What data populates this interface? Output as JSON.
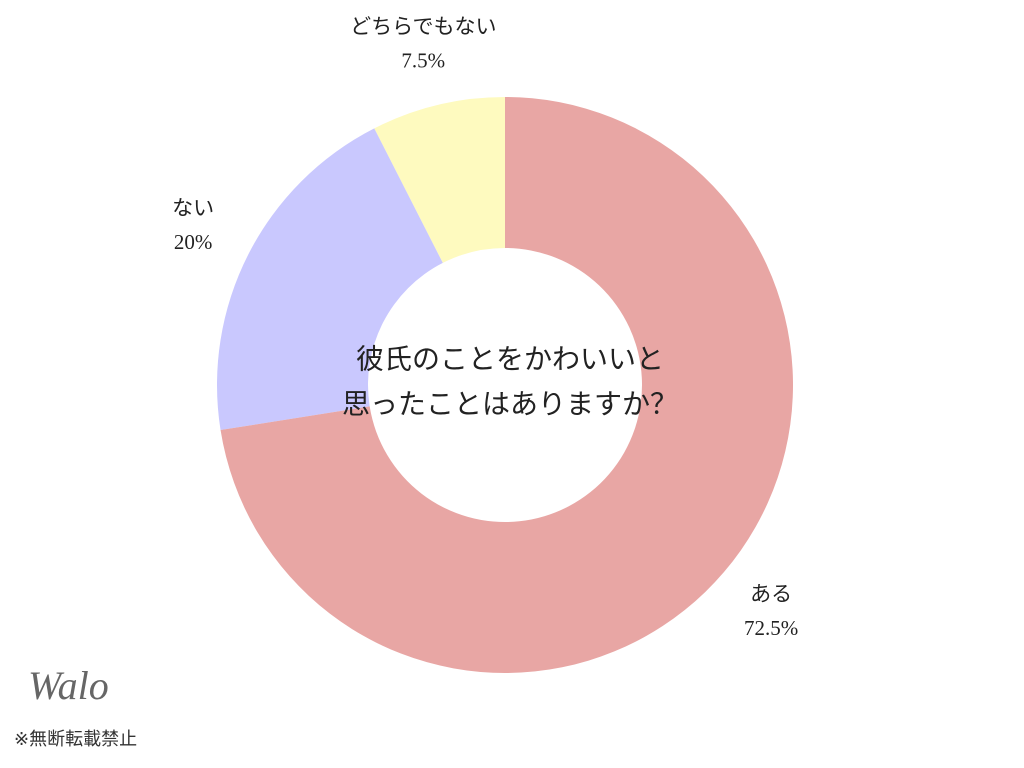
{
  "chart_data": {
    "type": "donut",
    "center_text": [
      "彼氏のことをかわいいと",
      "思ったことはありますか？"
    ],
    "categories": [
      "ある",
      "ない",
      "どちらでもない"
    ],
    "values": [
      72.5,
      20,
      7.5
    ],
    "value_labels": [
      "72.5%",
      "20%",
      "7.5%"
    ],
    "colors": [
      "#e8a6a4",
      "#c9c8fe",
      "#fefabf"
    ]
  },
  "footer": {
    "logo": "Walo",
    "note": "※無断転載禁止"
  }
}
